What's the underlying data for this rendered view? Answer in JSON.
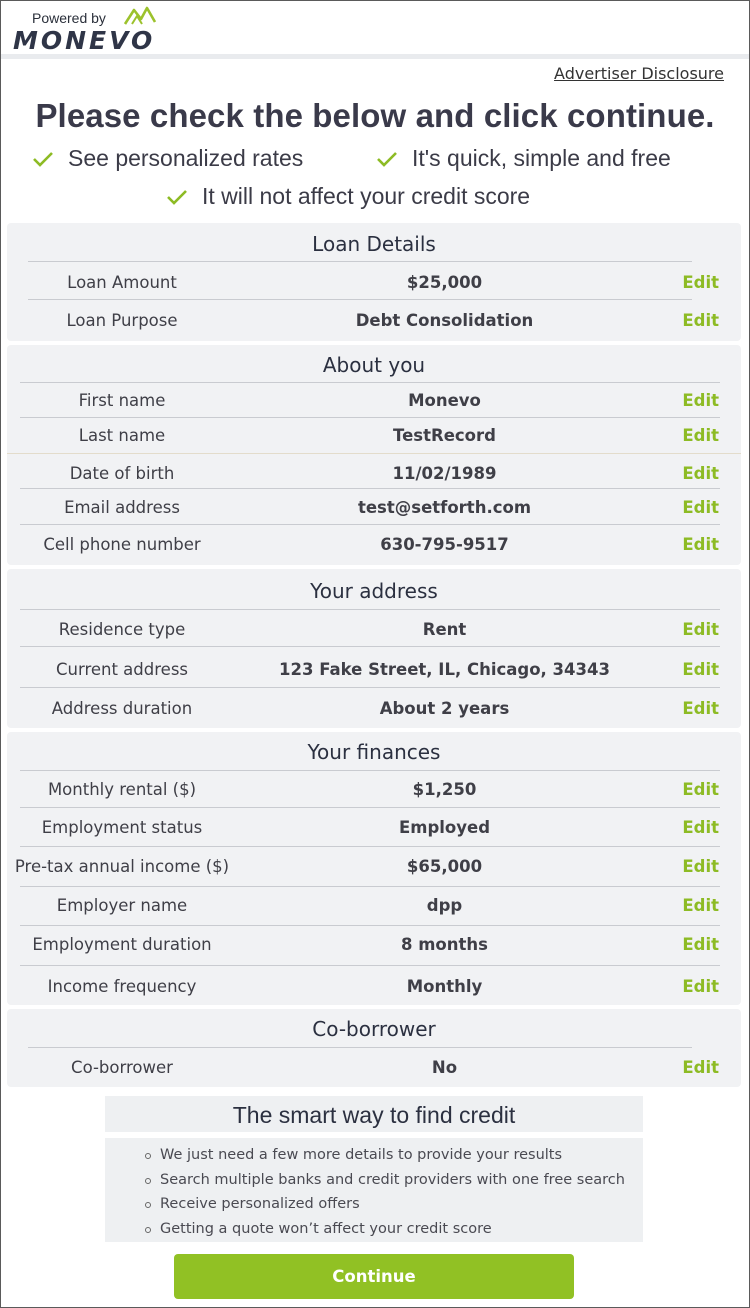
{
  "header": {
    "powered_by": "Powered by",
    "brand": "MONEVO",
    "advertiser_disclosure": "Advertiser Disclosure"
  },
  "headline": "Please check the below and click continue.",
  "benefits": [
    "See personalized rates",
    "It's quick, simple and free",
    "It will not affect your credit score"
  ],
  "edit_label": "Edit",
  "sections": [
    {
      "title": "Loan Details",
      "rows": [
        {
          "label": "Loan Amount",
          "value": "$25,000"
        },
        {
          "label": "Loan Purpose",
          "value": "Debt Consolidation"
        }
      ]
    },
    {
      "title": "About you",
      "rows": [
        {
          "label": "First name",
          "value": "Monevo"
        },
        {
          "label": "Last name",
          "value": "TestRecord"
        },
        {
          "label": "Date of birth",
          "value": "11/02/1989"
        },
        {
          "label": "Email address",
          "value": "test@setforth.com"
        },
        {
          "label": "Cell phone number",
          "value": "630-795-9517"
        }
      ]
    },
    {
      "title": "Your address",
      "rows": [
        {
          "label": "Residence type",
          "value": "Rent"
        },
        {
          "label": "Current address",
          "value": "123 Fake Street, IL, Chicago, 34343"
        },
        {
          "label": "Address duration",
          "value": "About 2 years"
        }
      ]
    },
    {
      "title": "Your finances",
      "rows": [
        {
          "label": "Monthly rental ($)",
          "value": "$1,250"
        },
        {
          "label": "Employment status",
          "value": "Employed"
        },
        {
          "label": "Pre-tax annual income ($)",
          "value": "$65,000"
        },
        {
          "label": "Employer name",
          "value": "dpp"
        },
        {
          "label": "Employment duration",
          "value": "8 months"
        },
        {
          "label": "Income frequency",
          "value": "Monthly"
        }
      ]
    },
    {
      "title": "Co-borrower",
      "rows": [
        {
          "label": "Co-borrower",
          "value": "No"
        }
      ]
    }
  ],
  "smart": {
    "title": "The smart way to find credit",
    "items": [
      "We just need a few more details to provide your results",
      "Search multiple banks and credit providers with one free search",
      "Receive personalized offers",
      "Getting a quote won’t affect your credit score"
    ]
  },
  "continue_label": "Continue",
  "colors": {
    "accent_green": "#91c124",
    "edit_green": "#8dbb24",
    "section_bg": "#f1f2f4"
  }
}
